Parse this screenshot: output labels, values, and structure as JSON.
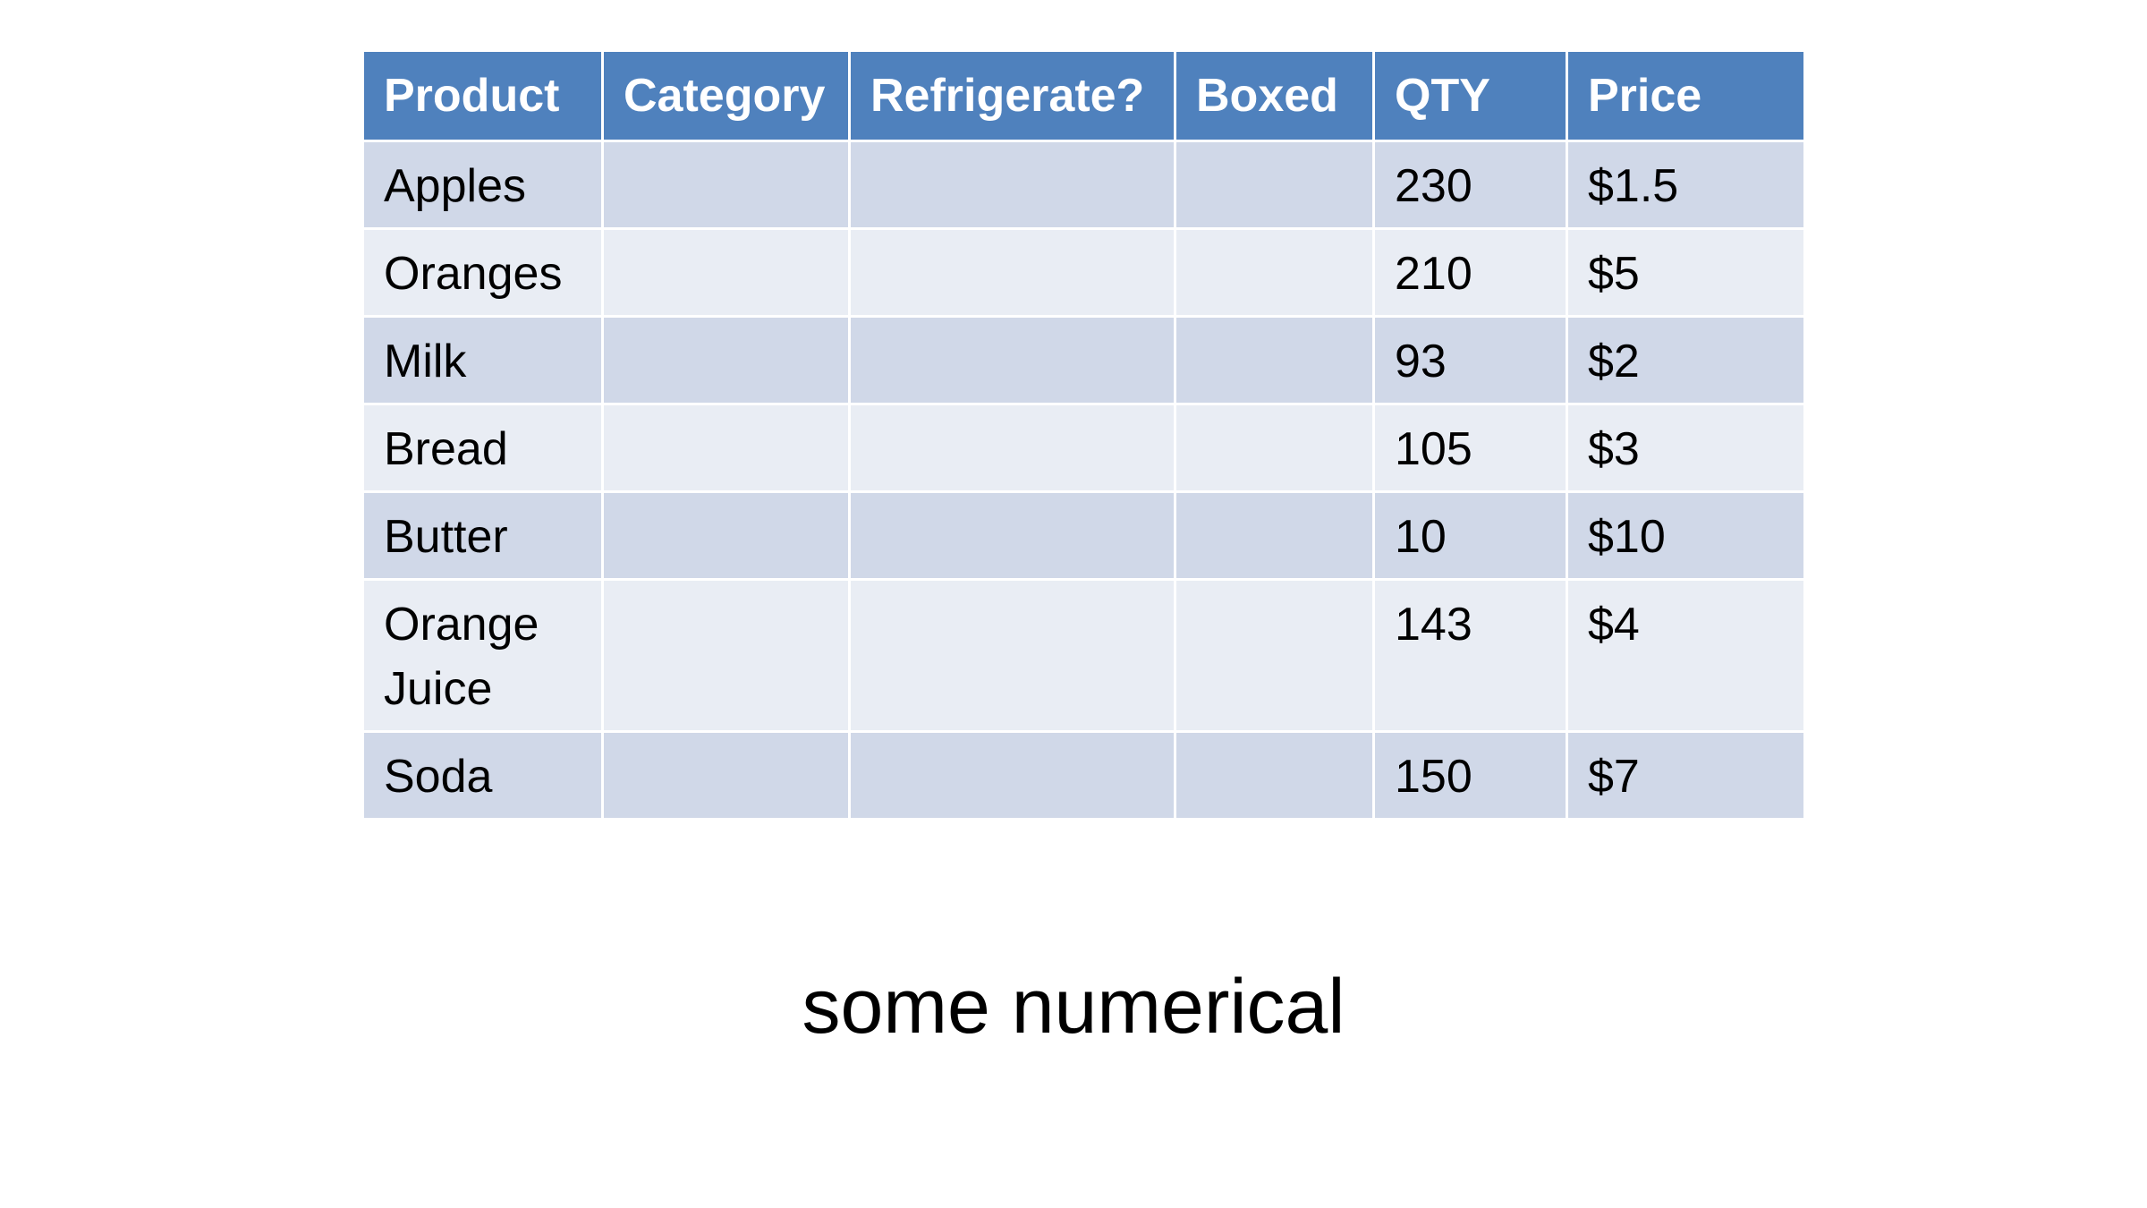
{
  "table": {
    "headers": [
      "Product",
      "Category",
      "Refrigerate?",
      "Boxed",
      "QTY",
      "Price"
    ],
    "rows": [
      {
        "product": "Apples",
        "category": "",
        "refrigerate": "",
        "boxed": "",
        "qty": "230",
        "price": "$1.5"
      },
      {
        "product": "Oranges",
        "category": "",
        "refrigerate": "",
        "boxed": "",
        "qty": "210",
        "price": "$5"
      },
      {
        "product": "Milk",
        "category": "",
        "refrigerate": "",
        "boxed": "",
        "qty": "93",
        "price": "$2"
      },
      {
        "product": "Bread",
        "category": "",
        "refrigerate": "",
        "boxed": "",
        "qty": "105",
        "price": "$3"
      },
      {
        "product": "Butter",
        "category": "",
        "refrigerate": "",
        "boxed": "",
        "qty": "10",
        "price": "$10"
      },
      {
        "product": "Orange Juice",
        "category": "",
        "refrigerate": "",
        "boxed": "",
        "qty": "143",
        "price": "$4"
      },
      {
        "product": "Soda",
        "category": "",
        "refrigerate": "",
        "boxed": "",
        "qty": "150",
        "price": "$7"
      }
    ]
  },
  "caption": "some numerical",
  "colors": {
    "header_bg": "#4f81bd",
    "row_odd_bg": "#d0d8e8",
    "row_even_bg": "#e9edf4"
  }
}
